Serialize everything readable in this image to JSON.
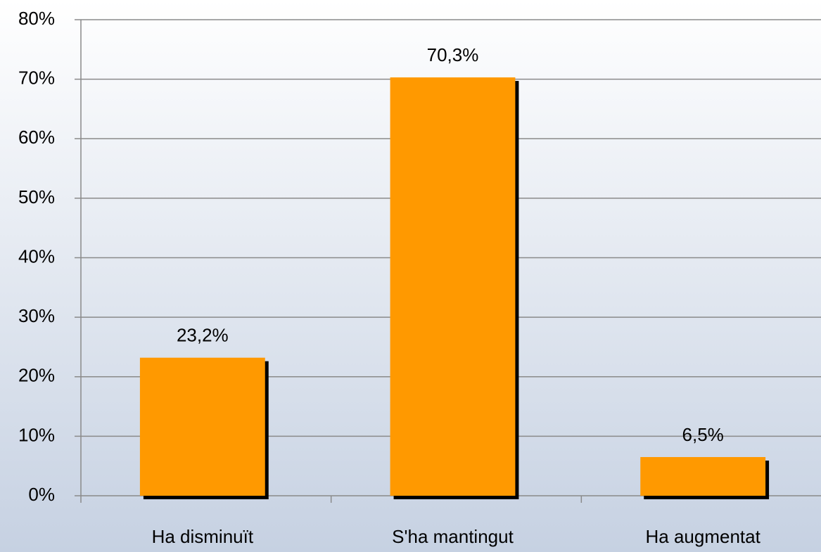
{
  "chart_data": {
    "type": "bar",
    "categories": [
      "Ha disminuït",
      "S'ha mantingut",
      "Ha augmentat"
    ],
    "values": [
      23.2,
      70.3,
      6.5
    ],
    "value_labels": [
      "23,2%",
      "70,3%",
      "6,5%"
    ],
    "color": "#ff9900",
    "ylim": [
      0,
      80
    ],
    "yticks": [
      {
        "value": 0,
        "label": "0%"
      },
      {
        "value": 10,
        "label": "10%"
      },
      {
        "value": 20,
        "label": "20%"
      },
      {
        "value": 30,
        "label": "30%"
      },
      {
        "value": 40,
        "label": "40%"
      },
      {
        "value": 50,
        "label": "50%"
      },
      {
        "value": 60,
        "label": "60%"
      },
      {
        "value": 70,
        "label": "70%"
      },
      {
        "value": 80,
        "label": "80%"
      }
    ],
    "grid": true
  }
}
